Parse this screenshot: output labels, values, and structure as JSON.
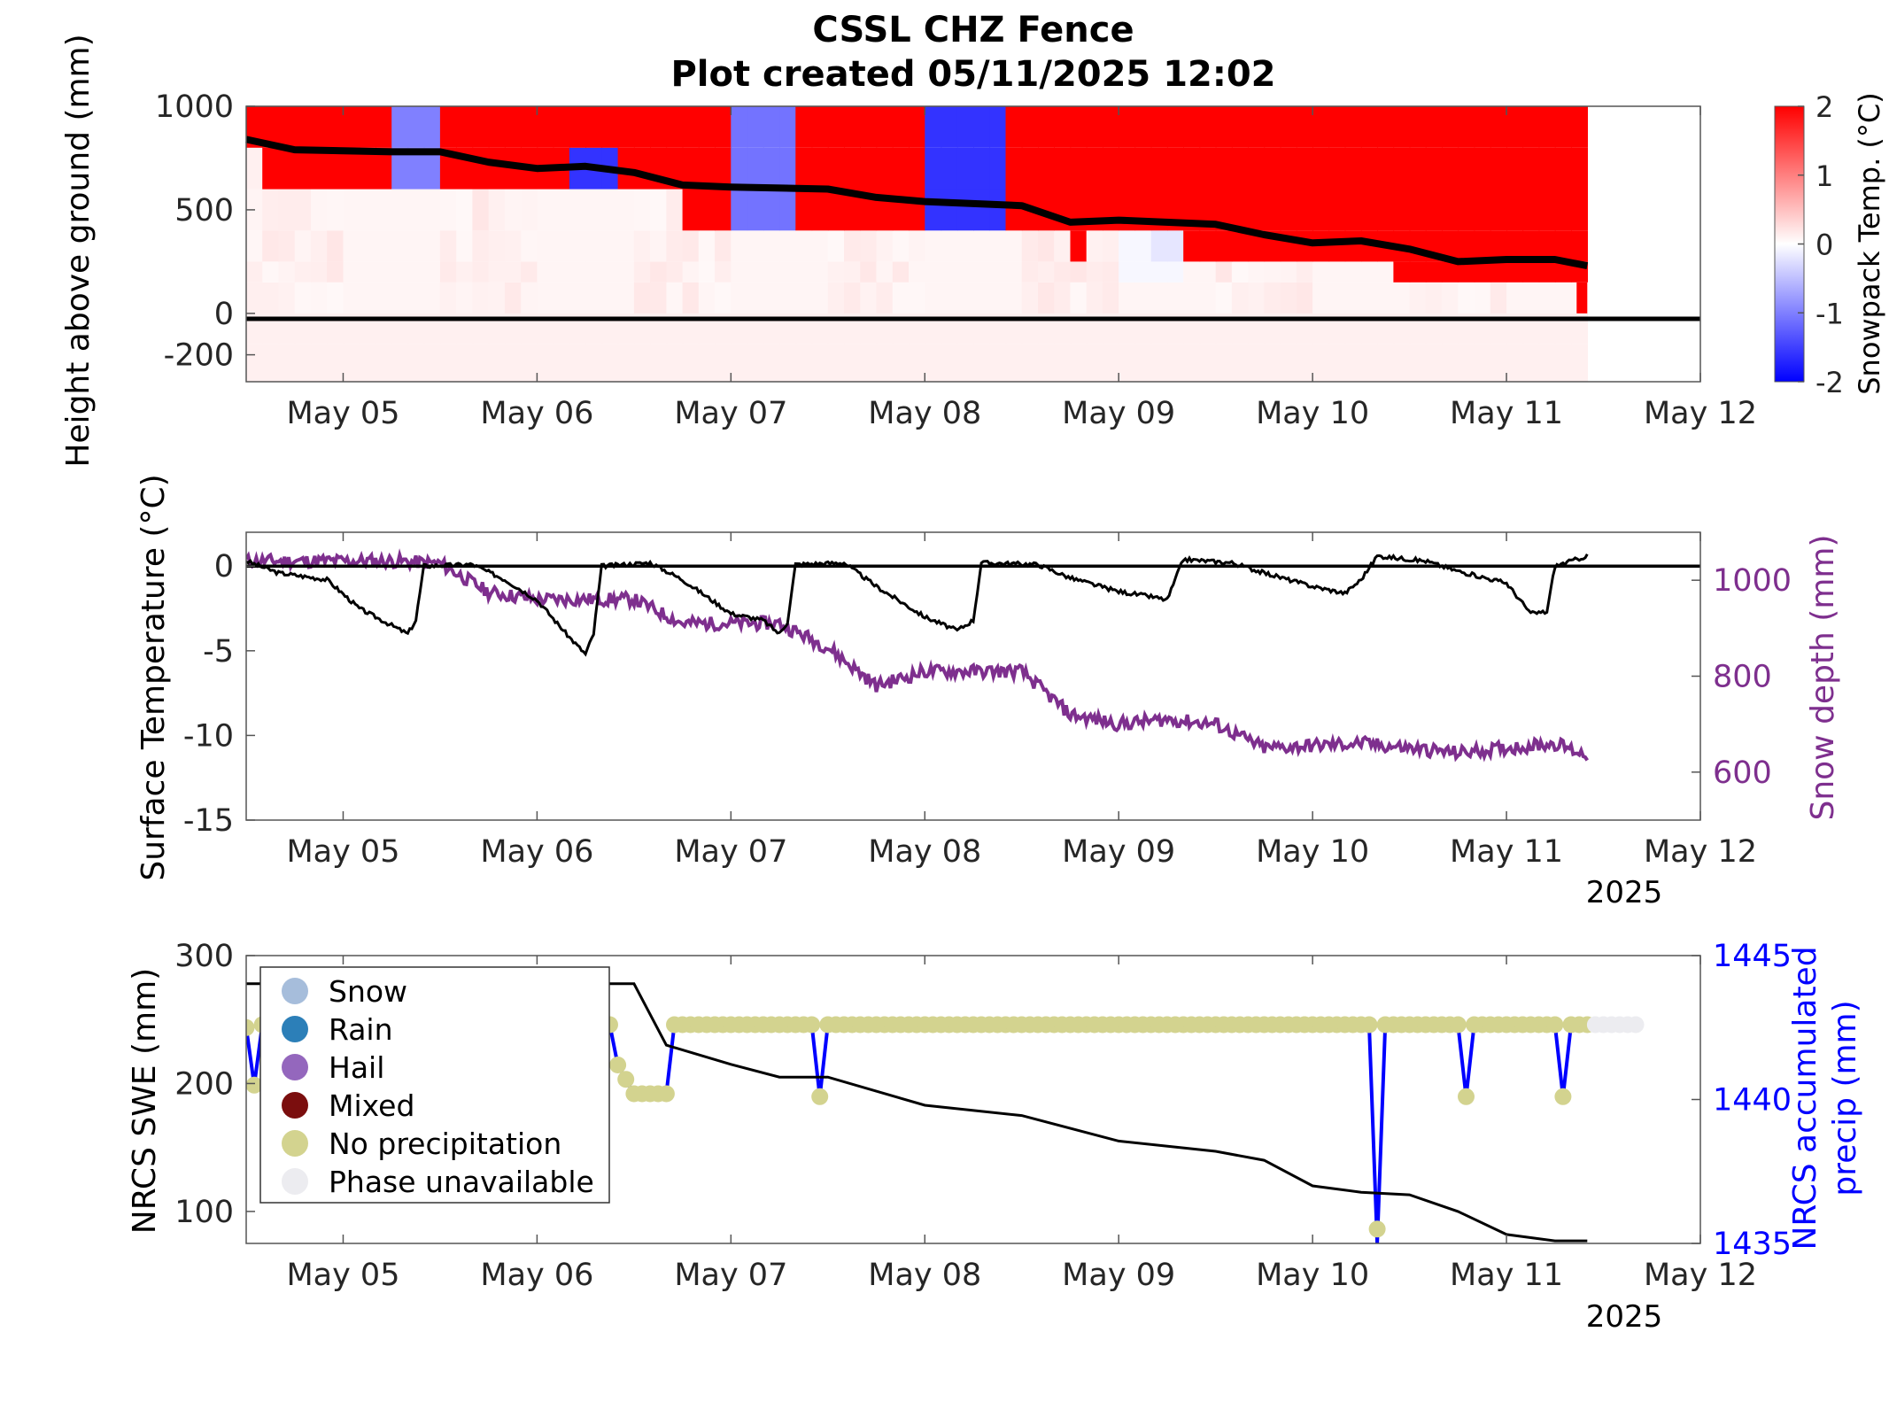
{
  "figure": {
    "title_line1": "CSSL CHZ Fence",
    "title_line2": "Plot created 05/11/2025 12:02",
    "year_label": "2025"
  },
  "colors": {
    "warm": "#ff0000",
    "cold": "#0000ff",
    "snow_depth": "#7e2f8e",
    "precip": "#0000ff",
    "swe": "#000000",
    "phase_snow": "#a6bddb",
    "phase_rain": "#2c7fb8",
    "phase_hail": "#9467bd",
    "phase_mixed": "#7b0e0e",
    "phase_none": "#d3d38f",
    "phase_unavailable": "#ececf0"
  },
  "chart_data": [
    {
      "type": "heatmap",
      "title": "",
      "xlabel": "",
      "ylabel": "Height above ground (mm)",
      "xlim": [
        "2025-05-04T12:00",
        "2025-05-12T00:00"
      ],
      "ylim": [
        -330,
        1000
      ],
      "xticks": [
        "May 05",
        "May 06",
        "May 07",
        "May 08",
        "May 09",
        "May 10",
        "May 11",
        "May 12"
      ],
      "yticks": [
        -200,
        0,
        500,
        1000
      ],
      "colorbar": {
        "label": "Snowpack Temp. (°C)",
        "range": [
          -2,
          2
        ],
        "ticks": [
          -2,
          -1,
          0,
          1,
          2
        ]
      },
      "sensor_heights_mm": [
        -200,
        100,
        300,
        500,
        700,
        900
      ],
      "snow_surface": [
        {
          "x": "2025-05-04T12:00",
          "height": 840
        },
        {
          "x": "2025-05-04T18:00",
          "height": 790
        },
        {
          "x": "2025-05-05T06:00",
          "height": 780
        },
        {
          "x": "2025-05-05T12:00",
          "height": 780
        },
        {
          "x": "2025-05-05T18:00",
          "height": 730
        },
        {
          "x": "2025-05-06T00:00",
          "height": 700
        },
        {
          "x": "2025-05-06T06:00",
          "height": 710
        },
        {
          "x": "2025-05-06T12:00",
          "height": 680
        },
        {
          "x": "2025-05-06T18:00",
          "height": 620
        },
        {
          "x": "2025-05-07T00:00",
          "height": 610
        },
        {
          "x": "2025-05-07T12:00",
          "height": 600
        },
        {
          "x": "2025-05-07T18:00",
          "height": 560
        },
        {
          "x": "2025-05-08T00:00",
          "height": 540
        },
        {
          "x": "2025-05-08T12:00",
          "height": 520
        },
        {
          "x": "2025-05-08T18:00",
          "height": 440
        },
        {
          "x": "2025-05-09T00:00",
          "height": 450
        },
        {
          "x": "2025-05-09T12:00",
          "height": 430
        },
        {
          "x": "2025-05-09T18:00",
          "height": 380
        },
        {
          "x": "2025-05-10T00:00",
          "height": 340
        },
        {
          "x": "2025-05-10T06:00",
          "height": 350
        },
        {
          "x": "2025-05-10T12:00",
          "height": 310
        },
        {
          "x": "2025-05-10T18:00",
          "height": 250
        },
        {
          "x": "2025-05-11T00:00",
          "height": 260
        },
        {
          "x": "2025-05-11T06:00",
          "height": 260
        },
        {
          "x": "2025-05-11T10:00",
          "height": 230
        }
      ]
    },
    {
      "type": "line",
      "title": "",
      "xlabel": "",
      "ylabel": "Surface Temperature (°C)",
      "y2label": "Snow depth (mm)",
      "xlim": [
        "2025-05-04T12:00",
        "2025-05-12T00:00"
      ],
      "ylim": [
        -15,
        2
      ],
      "y2lim": [
        500,
        1100
      ],
      "xticks": [
        "May 05",
        "May 06",
        "May 07",
        "May 08",
        "May 09",
        "May 10",
        "May 11",
        "May 12"
      ],
      "yticks": [
        -15,
        -10,
        -5,
        0
      ],
      "y2ticks": [
        600,
        800,
        1000
      ],
      "series": [
        {
          "name": "Surface Temperature",
          "axis": "left",
          "points": [
            [
              "2025-05-04T12:00",
              0.3
            ],
            [
              "2025-05-04T16:00",
              -0.4
            ],
            [
              "2025-05-04T22:00",
              -0.8
            ],
            [
              "2025-05-05T02:00",
              -2.5
            ],
            [
              "2025-05-05T06:00",
              -3.5
            ],
            [
              "2025-05-05T08:00",
              -4.0
            ],
            [
              "2025-05-05T09:00",
              -3.2
            ],
            [
              "2025-05-05T10:00",
              0.0
            ],
            [
              "2025-05-05T16:00",
              0.1
            ],
            [
              "2025-05-05T20:00",
              -0.8
            ],
            [
              "2025-05-06T00:00",
              -2.0
            ],
            [
              "2025-05-06T04:00",
              -4.2
            ],
            [
              "2025-05-06T06:00",
              -5.2
            ],
            [
              "2025-05-06T07:00",
              -4.0
            ],
            [
              "2025-05-06T08:00",
              0.0
            ],
            [
              "2025-05-06T14:00",
              0.2
            ],
            [
              "2025-05-06T18:00",
              -0.8
            ],
            [
              "2025-05-07T00:00",
              -2.8
            ],
            [
              "2025-05-07T04:00",
              -3.2
            ],
            [
              "2025-05-07T06:00",
              -4.0
            ],
            [
              "2025-05-07T07:00",
              -3.3
            ],
            [
              "2025-05-07T08:00",
              0.1
            ],
            [
              "2025-05-07T14:00",
              0.2
            ],
            [
              "2025-05-07T18:00",
              -1.2
            ],
            [
              "2025-05-08T00:00",
              -3.0
            ],
            [
              "2025-05-08T04:00",
              -3.8
            ],
            [
              "2025-05-08T06:00",
              -3.2
            ],
            [
              "2025-05-08T07:00",
              0.2
            ],
            [
              "2025-05-08T14:00",
              0.1
            ],
            [
              "2025-05-08T18:00",
              -0.7
            ],
            [
              "2025-05-09T00:00",
              -1.5
            ],
            [
              "2025-05-09T04:00",
              -1.8
            ],
            [
              "2025-05-09T06:00",
              -2.0
            ],
            [
              "2025-05-09T08:00",
              0.4
            ],
            [
              "2025-05-09T14:00",
              0.2
            ],
            [
              "2025-05-09T18:00",
              -0.4
            ],
            [
              "2025-05-10T00:00",
              -1.2
            ],
            [
              "2025-05-10T04:00",
              -1.6
            ],
            [
              "2025-05-10T06:00",
              -0.8
            ],
            [
              "2025-05-10T08:00",
              0.6
            ],
            [
              "2025-05-10T14:00",
              0.3
            ],
            [
              "2025-05-10T18:00",
              -0.3
            ],
            [
              "2025-05-11T00:00",
              -1.0
            ],
            [
              "2025-05-11T03:00",
              -2.8
            ],
            [
              "2025-05-11T05:00",
              -2.7
            ],
            [
              "2025-05-11T06:00",
              0.0
            ],
            [
              "2025-05-11T10:00",
              0.6
            ]
          ]
        },
        {
          "name": "Snow depth",
          "axis": "right",
          "points": [
            [
              "2025-05-04T12:00",
              1040
            ],
            [
              "2025-05-05T06:00",
              1040
            ],
            [
              "2025-05-05T12:00",
              1035
            ],
            [
              "2025-05-05T18:00",
              975
            ],
            [
              "2025-05-06T00:00",
              960
            ],
            [
              "2025-05-06T06:00",
              960
            ],
            [
              "2025-05-06T12:00",
              960
            ],
            [
              "2025-05-06T18:00",
              910
            ],
            [
              "2025-05-07T00:00",
              910
            ],
            [
              "2025-05-07T06:00",
              910
            ],
            [
              "2025-05-07T12:00",
              860
            ],
            [
              "2025-05-07T18:00",
              780
            ],
            [
              "2025-05-08T00:00",
              810
            ],
            [
              "2025-05-08T06:00",
              810
            ],
            [
              "2025-05-08T12:00",
              810
            ],
            [
              "2025-05-08T18:00",
              720
            ],
            [
              "2025-05-09T00:00",
              700
            ],
            [
              "2025-05-09T06:00",
              710
            ],
            [
              "2025-05-09T12:00",
              700
            ],
            [
              "2025-05-09T18:00",
              650
            ],
            [
              "2025-05-10T00:00",
              655
            ],
            [
              "2025-05-10T06:00",
              660
            ],
            [
              "2025-05-10T12:00",
              650
            ],
            [
              "2025-05-10T18:00",
              640
            ],
            [
              "2025-05-11T00:00",
              650
            ],
            [
              "2025-05-11T06:00",
              660
            ],
            [
              "2025-05-11T10:00",
              635
            ]
          ]
        }
      ]
    },
    {
      "type": "line",
      "title": "",
      "xlabel": "",
      "ylabel": "NRCS SWE (mm)",
      "y2label": "NRCS accumulated precip (mm)",
      "xlim": [
        "2025-05-04T12:00",
        "2025-05-12T00:00"
      ],
      "ylim": [
        75,
        300
      ],
      "y2lim": [
        1435,
        1445
      ],
      "xticks": [
        "May 05",
        "May 06",
        "May 07",
        "May 08",
        "May 09",
        "May 10",
        "May 11",
        "May 12"
      ],
      "yticks": [
        100,
        200,
        300
      ],
      "y2ticks": [
        1435,
        1440,
        1445
      ],
      "legend": {
        "position": "top-left",
        "entries": [
          "Snow",
          "Rain",
          "Hail",
          "Mixed",
          "No precipitation",
          "Phase unavailable"
        ]
      },
      "series": [
        {
          "name": "NRCS SWE",
          "axis": "left",
          "points": [
            [
              "2025-05-04T12:00",
              278
            ],
            [
              "2025-05-04T18:00",
              278
            ],
            [
              "2025-05-06T12:00",
              278
            ],
            [
              "2025-05-06T16:00",
              230
            ],
            [
              "2025-05-07T00:00",
              215
            ],
            [
              "2025-05-07T06:00",
              205
            ],
            [
              "2025-05-07T12:00",
              205
            ],
            [
              "2025-05-08T00:00",
              183
            ],
            [
              "2025-05-08T12:00",
              175
            ],
            [
              "2025-05-09T00:00",
              155
            ],
            [
              "2025-05-09T12:00",
              147
            ],
            [
              "2025-05-09T18:00",
              140
            ],
            [
              "2025-05-10T00:00",
              120
            ],
            [
              "2025-05-10T06:00",
              115
            ],
            [
              "2025-05-10T12:00",
              113
            ],
            [
              "2025-05-10T18:00",
              100
            ],
            [
              "2025-05-11T00:00",
              82
            ],
            [
              "2025-05-11T06:00",
              77
            ],
            [
              "2025-05-11T10:00",
              77
            ]
          ]
        },
        {
          "name": "NRCS accumulated precip",
          "axis": "right",
          "points": [
            [
              "2025-05-04T12:00",
              1442.5
            ],
            [
              "2025-05-04T13:00",
              1440.5
            ],
            [
              "2025-05-04T14:00",
              1442.6
            ],
            [
              "2025-05-06T09:00",
              1442.6
            ],
            [
              "2025-05-06T10:00",
              1441.2
            ],
            [
              "2025-05-06T12:00",
              1440.2
            ],
            [
              "2025-05-06T16:00",
              1440.2
            ],
            [
              "2025-05-06T17:00",
              1442.6
            ],
            [
              "2025-05-07T10:00",
              1442.6
            ],
            [
              "2025-05-07T11:00",
              1440.1
            ],
            [
              "2025-05-07T12:00",
              1442.6
            ],
            [
              "2025-05-10T07:00",
              1442.6
            ],
            [
              "2025-05-10T08:00",
              1435.0
            ],
            [
              "2025-05-10T09:00",
              1442.6
            ],
            [
              "2025-05-10T18:00",
              1442.6
            ],
            [
              "2025-05-10T19:00",
              1440.1
            ],
            [
              "2025-05-10T20:00",
              1442.6
            ],
            [
              "2025-05-11T06:00",
              1442.6
            ],
            [
              "2025-05-11T07:00",
              1440.1
            ],
            [
              "2025-05-11T08:00",
              1442.6
            ],
            [
              "2025-05-11T10:00",
              1442.6
            ]
          ]
        }
      ]
    }
  ]
}
